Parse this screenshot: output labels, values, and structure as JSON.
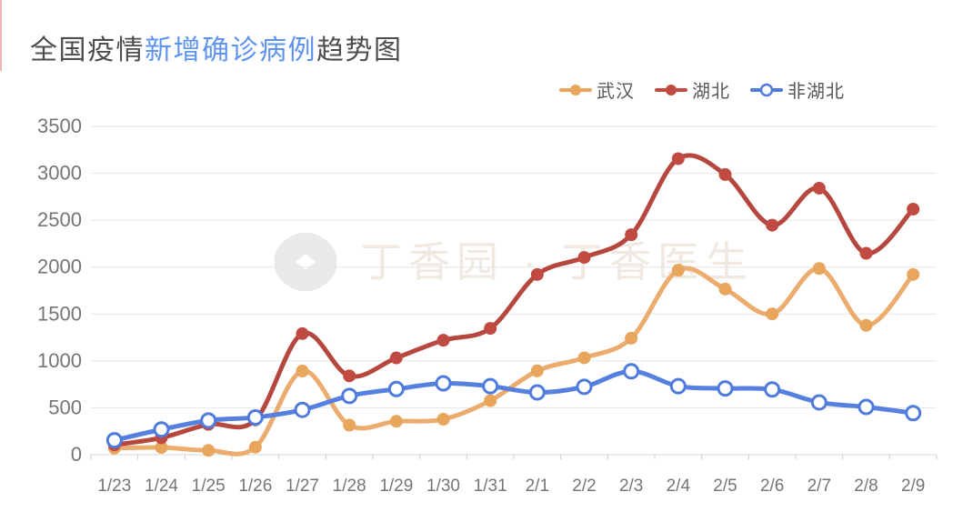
{
  "title": {
    "prefix": "全国疫情",
    "highlight": "新增确诊病例",
    "suffix": "趋势图",
    "prefix_color": "#4d4d4d",
    "highlight_color": "#5e93f0"
  },
  "legend": [
    {
      "key": "wuhan",
      "label": "武汉",
      "marker": "filled",
      "color": "#E8A55C"
    },
    {
      "key": "hubei",
      "label": "湖北",
      "marker": "filled",
      "color": "#C14A42"
    },
    {
      "key": "non-hubei",
      "label": "非湖北",
      "marker": "hollow",
      "color": "#4F7BDC"
    }
  ],
  "watermark": {
    "logo": "clover-leaf-icon",
    "text": "丁香园 · 丁香医生"
  },
  "axis_colors": {
    "gridline": "#e6e6e6",
    "axis_line": "#d4d4d4",
    "tick": "#cccccc",
    "label": "#757575"
  },
  "chart_data": {
    "type": "line",
    "title": "全国疫情新增确诊病例趋势图",
    "xlabel": "",
    "ylabel": "",
    "ylim": [
      0,
      3500
    ],
    "ytick_step": 500,
    "y_tick_labels": [
      "0",
      "500",
      "1000",
      "1500",
      "2000",
      "2500",
      "3000",
      "3500"
    ],
    "grid": true,
    "smooth": true,
    "legend_position": "top-right",
    "categories": [
      "1/23",
      "1/24",
      "1/25",
      "1/26",
      "1/27",
      "1/28",
      "1/29",
      "1/30",
      "1/31",
      "2/1",
      "2/2",
      "2/3",
      "2/4",
      "2/5",
      "2/6",
      "2/7",
      "2/8",
      "2/9"
    ],
    "series": [
      {
        "name": "武汉",
        "key": "wuhan",
        "marker": "filled",
        "line_color": "#EBAC6E",
        "point_color": "#E8A55C",
        "values": [
          70,
          77,
          46,
          80,
          892,
          315,
          356,
          378,
          576,
          894,
          1033,
          1242,
          1967,
          1766,
          1501,
          1985,
          1379,
          1921
        ]
      },
      {
        "name": "湖北",
        "key": "hubei",
        "marker": "filled",
        "line_color": "#B5473F",
        "point_color": "#C14A42",
        "values": [
          105,
          180,
          323,
          371,
          1291,
          840,
          1032,
          1220,
          1347,
          1921,
          2103,
          2345,
          3156,
          2987,
          2447,
          2841,
          2147,
          2618
        ]
      },
      {
        "name": "非湖北",
        "key": "non-hubei",
        "marker": "hollow",
        "line_color": "#5680E0",
        "point_color": "#4F7BDC",
        "values": [
          154,
          269,
          365,
          398,
          478,
          627,
          700,
          761,
          731,
          664,
          724,
          890,
          731,
          707,
          696,
          558,
          509,
          444
        ]
      }
    ]
  }
}
